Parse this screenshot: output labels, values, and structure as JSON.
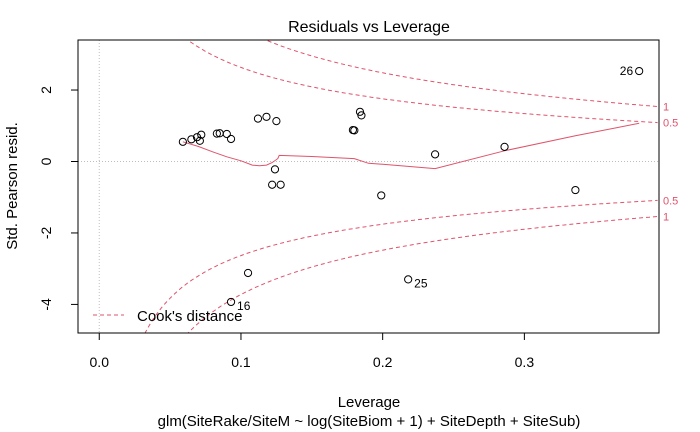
{
  "chart_data": {
    "type": "scatter",
    "title": "Residuals vs Leverage",
    "xlabel": "Leverage",
    "subtitle": "glm(SiteRake/SiteM ~ log(SiteBiom + 1) + SiteDepth + SiteSub)",
    "ylabel": "Std. Pearson resid.",
    "xlim": [
      -0.015,
      0.395
    ],
    "ylim": [
      -4.8,
      3.4
    ],
    "x_ticks": [
      0.0,
      0.1,
      0.2,
      0.3
    ],
    "x_tick_labels": [
      "0.0",
      "0.1",
      "0.2",
      "0.3"
    ],
    "y_ticks": [
      -4,
      -2,
      0,
      2
    ],
    "y_tick_labels": [
      "-4",
      "-2",
      "0",
      "2"
    ],
    "grid": false,
    "reference_lines": {
      "h": 0,
      "v": 0
    },
    "points": [
      {
        "x": 0.059,
        "y": 0.55,
        "label": ""
      },
      {
        "x": 0.065,
        "y": 0.62,
        "label": ""
      },
      {
        "x": 0.069,
        "y": 0.68,
        "label": ""
      },
      {
        "x": 0.071,
        "y": 0.58,
        "label": ""
      },
      {
        "x": 0.072,
        "y": 0.75,
        "label": ""
      },
      {
        "x": 0.083,
        "y": 0.78,
        "label": ""
      },
      {
        "x": 0.085,
        "y": 0.79,
        "label": ""
      },
      {
        "x": 0.09,
        "y": 0.77,
        "label": ""
      },
      {
        "x": 0.093,
        "y": 0.63,
        "label": ""
      },
      {
        "x": 0.093,
        "y": -3.93,
        "label": "16"
      },
      {
        "x": 0.105,
        "y": -3.12,
        "label": ""
      },
      {
        "x": 0.112,
        "y": 1.2,
        "label": ""
      },
      {
        "x": 0.118,
        "y": 1.25,
        "label": ""
      },
      {
        "x": 0.125,
        "y": 1.13,
        "label": ""
      },
      {
        "x": 0.122,
        "y": -0.65,
        "label": ""
      },
      {
        "x": 0.124,
        "y": -0.22,
        "label": ""
      },
      {
        "x": 0.128,
        "y": -0.65,
        "label": ""
      },
      {
        "x": 0.179,
        "y": 0.88,
        "label": ""
      },
      {
        "x": 0.18,
        "y": 0.87,
        "label": ""
      },
      {
        "x": 0.184,
        "y": 1.39,
        "label": ""
      },
      {
        "x": 0.185,
        "y": 1.29,
        "label": ""
      },
      {
        "x": 0.199,
        "y": -0.95,
        "label": ""
      },
      {
        "x": 0.218,
        "y": -3.3,
        "label": "25"
      },
      {
        "x": 0.237,
        "y": 0.2,
        "label": ""
      },
      {
        "x": 0.286,
        "y": 0.41,
        "label": ""
      },
      {
        "x": 0.336,
        "y": -0.8,
        "label": ""
      },
      {
        "x": 0.381,
        "y": 2.53,
        "label": "26"
      }
    ],
    "smooth_line": {
      "x": [
        0.059,
        0.07,
        0.08,
        0.09,
        0.1,
        0.108,
        0.113,
        0.118,
        0.122,
        0.126,
        0.127,
        0.15,
        0.18,
        0.19,
        0.2,
        0.237,
        0.286,
        0.336,
        0.381
      ],
      "y": [
        0.55,
        0.42,
        0.27,
        0.13,
        0.02,
        -0.1,
        -0.12,
        -0.1,
        -0.03,
        0.08,
        0.17,
        0.14,
        0.08,
        -0.05,
        -0.08,
        -0.2,
        0.3,
        0.72,
        1.07
      ]
    },
    "cooks_distance": {
      "levels": [
        0.5,
        1
      ],
      "level_labels": [
        "0.5",
        "1"
      ],
      "p": 1.54
    },
    "legend": {
      "entries": [
        "Cook's distance"
      ],
      "position": "bottom-left"
    },
    "colors": {
      "points": "#000000",
      "smooth": "#DF536B",
      "cook": "#DF536B",
      "reference": "#BEBEBE"
    }
  }
}
